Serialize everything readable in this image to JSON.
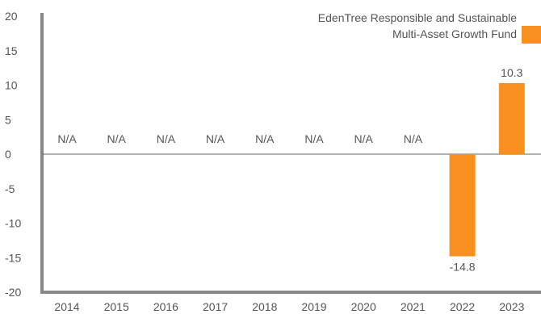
{
  "chart_data": {
    "type": "bar",
    "categories": [
      "2014",
      "2015",
      "2016",
      "2017",
      "2018",
      "2019",
      "2020",
      "2021",
      "2022",
      "2023"
    ],
    "series": [
      {
        "name": "EdenTree Responsible and Sustainable Multi-Asset Growth Fund",
        "values": [
          null,
          null,
          null,
          null,
          null,
          null,
          null,
          null,
          -14.8,
          10.3
        ],
        "labels": [
          "N/A",
          "N/A",
          "N/A",
          "N/A",
          "N/A",
          "N/A",
          "N/A",
          "N/A",
          "-14.8",
          "10.3"
        ],
        "color": "#f7901e"
      }
    ],
    "legend": {
      "line1": "EdenTree Responsible and Sustainable",
      "line2": "Multi-Asset Growth Fund",
      "placement": "top-right"
    },
    "yticks": [
      "20",
      "15",
      "10",
      "5",
      "0",
      "-5",
      "-10",
      "-15",
      "-20"
    ],
    "ylim": [
      -20,
      20
    ],
    "grid": false,
    "axis_color": "#888888"
  }
}
